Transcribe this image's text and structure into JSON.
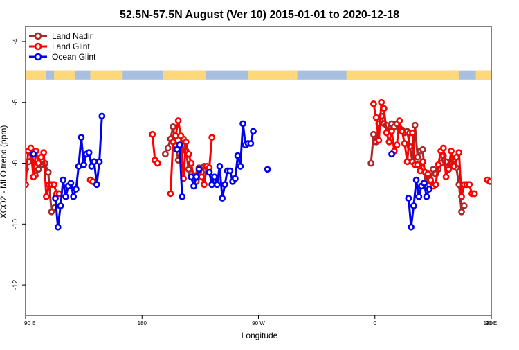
{
  "chart_data": {
    "type": "line",
    "title": "52.5N-57.5N August (Ver 10)   2015-01-01 to 2020-12-18",
    "xlabel": "Longitude",
    "ylabel": "XCO2 - MLO trend (ppm)",
    "xlim": [
      90,
      450
    ],
    "ylim": [
      -13,
      -3.5
    ],
    "x_ticks": [
      {
        "value": 90,
        "label": "90 E"
      },
      {
        "value": 180,
        "label": "180"
      },
      {
        "value": 270,
        "label": "90 W"
      },
      {
        "value": 360,
        "label": "0"
      },
      {
        "value": 450,
        "label": "90 E"
      },
      {
        "value": 540,
        "label": "180"
      }
    ],
    "y_ticks": [
      {
        "value": -4,
        "label": "-4"
      },
      {
        "value": -6,
        "label": "-6"
      },
      {
        "value": -8,
        "label": "-8"
      },
      {
        "value": -10,
        "label": "-10"
      },
      {
        "value": -12,
        "label": "-12"
      }
    ],
    "grid": false,
    "legend_position": "top-left",
    "land_ocean_strip": {
      "y_range": [
        -5.25,
        -4.95
      ],
      "land_color": "#ffd87a",
      "ocean_color": "#a8bfe0"
    },
    "series": [
      {
        "name": "Land Nadir",
        "color": "#a52a2a",
        "segments": [
          [
            [
              90,
              -8.2
            ],
            [
              92.5,
              -7.95
            ],
            [
              95,
              -7.7
            ],
            [
              97.5,
              -8.4
            ],
            [
              100,
              -8.2
            ],
            [
              102.5,
              -8.05
            ],
            [
              105,
              -8.0
            ],
            [
              107.5,
              -8.3
            ],
            [
              110,
              -9.6
            ],
            [
              112.5,
              -9.45
            ]
          ],
          [
            [
              198,
              -7.7
            ],
            [
              200,
              -7.5
            ],
            [
              202,
              -7.2
            ],
            [
              204,
              -6.8
            ],
            [
              206,
              -7.4
            ],
            [
              208,
              -7.9
            ],
            [
              210,
              -7.5
            ],
            [
              212,
              -7.2
            ],
            [
              214,
              -7.6
            ],
            [
              216,
              -8.2
            ],
            [
              218,
              -8.35
            ],
            [
              220,
              -8.45
            ],
            [
              222,
              -8.6
            ],
            [
              224,
              -8.15
            ],
            [
              226,
              -8.3
            ],
            [
              228,
              -8.1
            ]
          ],
          [
            [
              357,
              -8.0
            ],
            [
              359,
              -7.05
            ],
            [
              361,
              -7.3
            ],
            [
              363,
              -6.7
            ],
            [
              365,
              -6.45
            ],
            [
              367,
              -6.7
            ],
            [
              369,
              -6.75
            ],
            [
              371,
              -6.95
            ],
            [
              373,
              -6.7
            ],
            [
              375,
              -6.8
            ],
            [
              377,
              -6.7
            ],
            [
              379,
              -6.85
            ],
            [
              381,
              -6.9
            ],
            [
              383,
              -7.0
            ],
            [
              385,
              -6.95
            ],
            [
              387,
              -7.45
            ],
            [
              389,
              -7.95
            ],
            [
              391,
              -6.75
            ],
            [
              393,
              -7.8
            ],
            [
              395,
              -7.6
            ],
            [
              397,
              -7.55
            ],
            [
              399,
              -8.65
            ],
            [
              401,
              -8.4
            ],
            [
              403,
              -8.6
            ],
            [
              405,
              -8.2
            ],
            [
              407,
              -8.35
            ],
            [
              409,
              -8.2
            ],
            [
              411,
              -8.0
            ],
            [
              413,
              -7.75
            ],
            [
              415,
              -7.95
            ],
            [
              417,
              -8.2
            ],
            [
              419,
              -7.95
            ],
            [
              421,
              -7.95
            ],
            [
              423,
              -8.15
            ],
            [
              425,
              -8.7
            ],
            [
              427,
              -9.6
            ],
            [
              429,
              -9.4
            ]
          ]
        ]
      },
      {
        "name": "Land Glint",
        "color": "#ff0000",
        "segments": [
          [
            [
              90,
              -8.7
            ],
            [
              92,
              -7.6
            ],
            [
              94,
              -7.5
            ],
            [
              96,
              -8.45
            ],
            [
              98,
              -7.6
            ],
            [
              100,
              -8.0
            ],
            [
              102,
              -7.8
            ],
            [
              104,
              -7.65
            ],
            [
              106,
              -9.1
            ],
            [
              108,
              -8.7
            ],
            [
              110,
              -8.7
            ],
            [
              112,
              -8.7
            ],
            [
              114,
              -9.0
            ],
            [
              116,
              -9.0
            ]
          ],
          [
            [
              140,
              -8.55
            ],
            [
              142,
              -8.6
            ]
          ],
          [
            [
              188,
              -7.05
            ],
            [
              190,
              -7.9
            ],
            [
              192,
              -8.0
            ]
          ],
          [
            [
              202,
              -9.0
            ],
            [
              204,
              -7.3
            ],
            [
              206,
              -7.1
            ],
            [
              208,
              -6.6
            ],
            [
              210,
              -7.1
            ],
            [
              212,
              -8.5
            ],
            [
              214,
              -7.3
            ],
            [
              216,
              -7.7
            ],
            [
              218,
              -8.0
            ],
            [
              220,
              -8.5
            ],
            [
              222,
              -8.4
            ],
            [
              224,
              -8.25
            ],
            [
              226,
              -8.45
            ],
            [
              228,
              -8.7
            ],
            [
              230,
              -8.1
            ],
            [
              232,
              -8.15
            ],
            [
              234,
              -7.15
            ]
          ],
          [
            [
              359,
              -6.05
            ],
            [
              361,
              -6.5
            ],
            [
              363,
              -7.25
            ],
            [
              365,
              -6.0
            ],
            [
              367,
              -6.2
            ],
            [
              369,
              -7.0
            ],
            [
              371,
              -7.3
            ],
            [
              373,
              -6.95
            ],
            [
              375,
              -7.6
            ],
            [
              377,
              -7.4
            ],
            [
              379,
              -6.6
            ],
            [
              381,
              -6.95
            ],
            [
              383,
              -7.35
            ],
            [
              385,
              -7.95
            ],
            [
              387,
              -7.0
            ],
            [
              389,
              -7.0
            ],
            [
              391,
              -8.05
            ],
            [
              393,
              -8.05
            ],
            [
              395,
              -8.25
            ],
            [
              397,
              -7.95
            ],
            [
              399,
              -8.3
            ],
            [
              401,
              -8.35
            ],
            [
              403,
              -8.55
            ],
            [
              405,
              -8.75
            ],
            [
              407,
              -8.7
            ],
            [
              409,
              -8.05
            ],
            [
              411,
              -7.6
            ],
            [
              413,
              -7.5
            ],
            [
              415,
              -8.45
            ],
            [
              417,
              -8.2
            ],
            [
              419,
              -7.6
            ],
            [
              421,
              -8.1
            ],
            [
              423,
              -7.8
            ],
            [
              425,
              -7.65
            ],
            [
              427,
              -9.1
            ],
            [
              429,
              -8.7
            ],
            [
              431,
              -8.7
            ],
            [
              433,
              -8.7
            ],
            [
              435,
              -9.0
            ],
            [
              437,
              -9.0
            ]
          ],
          [
            [
              447,
              -8.55
            ],
            [
              449,
              -8.6
            ]
          ]
        ]
      },
      {
        "name": "Ocean Glint",
        "color": "#0000ee",
        "segments": [
          [
            [
              96,
              -7.7
            ]
          ],
          [
            [
              113,
              -9.15
            ],
            [
              115,
              -10.1
            ],
            [
              117,
              -9.4
            ],
            [
              119,
              -8.55
            ],
            [
              121,
              -9.1
            ],
            [
              123,
              -8.75
            ],
            [
              125,
              -8.65
            ],
            [
              127,
              -9.1
            ],
            [
              129,
              -8.85
            ],
            [
              131,
              -8.1
            ],
            [
              133,
              -7.15
            ],
            [
              135,
              -8.05
            ],
            [
              137,
              -7.7
            ],
            [
              139,
              -7.65
            ],
            [
              141,
              -8.1
            ],
            [
              143,
              -7.95
            ],
            [
              145,
              -8.7
            ],
            [
              147,
              -7.95
            ],
            [
              149,
              -6.45
            ]
          ],
          [
            [
              207,
              -7.55
            ],
            [
              209,
              -7.4
            ],
            [
              211,
              -9.1
            ]
          ],
          [
            [
              218,
              -8.45
            ],
            [
              220,
              -8.75
            ],
            [
              222,
              -8.45
            ],
            [
              224,
              -8.2
            ]
          ],
          [
            [
              232,
              -8.3
            ],
            [
              234,
              -8.7
            ],
            [
              236,
              -8.45
            ],
            [
              238,
              -8.7
            ],
            [
              240,
              -8.1
            ],
            [
              242,
              -9.15
            ],
            [
              244,
              -8.7
            ],
            [
              246,
              -8.25
            ],
            [
              248,
              -8.25
            ],
            [
              250,
              -8.6
            ],
            [
              252,
              -8.5
            ],
            [
              254,
              -7.75
            ],
            [
              256,
              -8.1
            ],
            [
              258,
              -6.7
            ],
            [
              260,
              -7.4
            ],
            [
              262,
              -7.35
            ],
            [
              264,
              -7.35
            ],
            [
              266,
              -6.95
            ]
          ],
          [
            [
              277,
              -8.2
            ]
          ],
          [
            [
              373,
              -7.7
            ]
          ],
          [
            [
              386,
              -9.15
            ],
            [
              388,
              -10.1
            ],
            [
              390,
              -9.4
            ],
            [
              392,
              -8.55
            ],
            [
              394,
              -9.1
            ],
            [
              396,
              -8.75
            ],
            [
              398,
              -8.65
            ],
            [
              400,
              -9.1
            ],
            [
              402,
              -8.85
            ]
          ]
        ]
      }
    ]
  }
}
